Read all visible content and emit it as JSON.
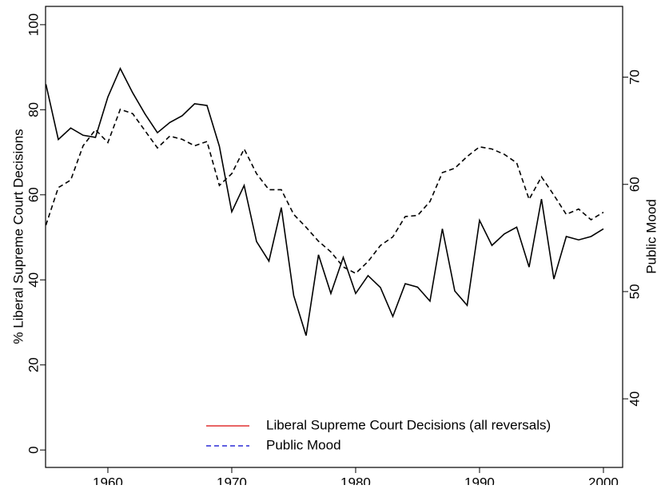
{
  "chart_data": {
    "type": "line",
    "x": [
      1955,
      1956,
      1957,
      1958,
      1959,
      1960,
      1961,
      1962,
      1963,
      1964,
      1965,
      1966,
      1967,
      1968,
      1969,
      1970,
      1971,
      1972,
      1973,
      1974,
      1975,
      1976,
      1977,
      1978,
      1979,
      1980,
      1981,
      1982,
      1983,
      1984,
      1985,
      1986,
      1987,
      1988,
      1989,
      1990,
      1991,
      1992,
      1993,
      1994,
      1995,
      1996,
      1997,
      1998,
      1999,
      2000
    ],
    "series": [
      {
        "name": "Liberal Supreme Court Decisions (all reversals)",
        "color": "#000000",
        "legend_color": "#e03030",
        "linestyle": "solid",
        "values": [
          86,
          73,
          75.7,
          74,
          73.5,
          83,
          89.7,
          84,
          79,
          74.6,
          77,
          78.6,
          81.4,
          81,
          71.4,
          56,
          62.2,
          49,
          44.4,
          57,
          36.3,
          26.9,
          45.9,
          36.8,
          45.3,
          36.8,
          41,
          38.2,
          31.4,
          39.1,
          38.3,
          35,
          52,
          37.4,
          34,
          54,
          48.1,
          50.8,
          52.4,
          43,
          59,
          40.2,
          50.2,
          49.4,
          50.2,
          52
        ]
      },
      {
        "name": "Public Mood",
        "color": "#000000",
        "legend_color": "#2b2bd6",
        "linestyle": "dashed",
        "axis": "y2",
        "values": [
          56.2,
          59.7,
          60.4,
          63.6,
          65.1,
          63.9,
          67,
          66.6,
          65,
          63.4,
          64.5,
          64.2,
          63.6,
          64,
          59.9,
          61,
          63.3,
          61,
          59.5,
          59.5,
          57.2,
          56,
          54.7,
          53.7,
          52.3,
          51.7,
          52.8,
          54.3,
          55.1,
          57,
          57.1,
          58.4,
          61.1,
          61.5,
          62.6,
          63.5,
          63.3,
          62.8,
          62,
          58.6,
          60.7,
          59,
          57.2,
          57.7,
          56.7,
          57.4
        ]
      }
    ],
    "ylabel": "% Liberal Supreme Court Decisions",
    "y2label": "Public Mood",
    "xlim": [
      1954.97,
      2001.55
    ],
    "xticks": [
      1960,
      1970,
      1980,
      1990,
      2000
    ],
    "ylim": [
      -4.1,
      104.3
    ],
    "yticks": [
      0,
      20,
      40,
      60,
      80,
      100
    ],
    "y2lim": [
      33.6,
      76.6
    ],
    "y2ticks": [
      40,
      50,
      60,
      70
    ],
    "legend": "bottom-right"
  }
}
